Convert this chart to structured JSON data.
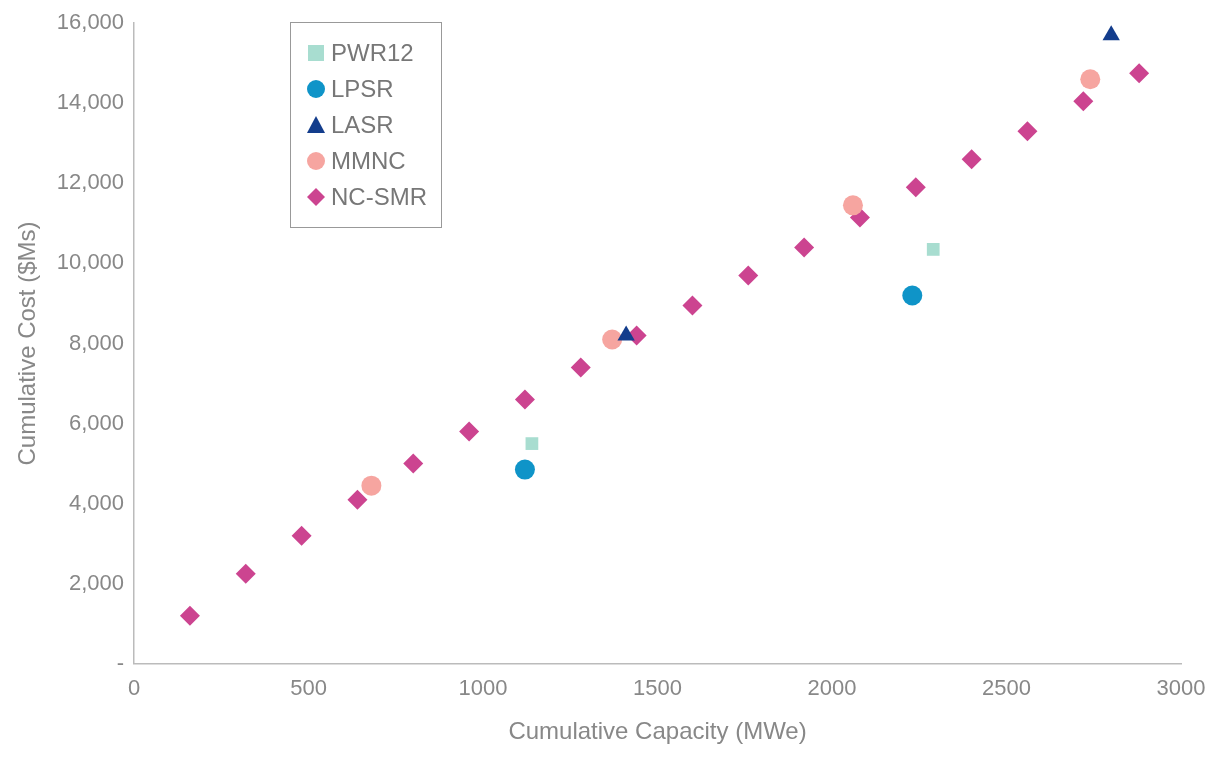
{
  "chart_data": {
    "type": "scatter",
    "xlabel": "Cumulative Capacity (MWe)",
    "ylabel": "Cumulative Cost ($Ms)",
    "xlim": [
      0,
      3000
    ],
    "xticks": [
      0,
      500,
      1000,
      1500,
      2000,
      2500,
      3000
    ],
    "ylim": [
      0,
      16000
    ],
    "yticks": [
      {
        "value": 0,
        "label": "-"
      },
      {
        "value": 2000,
        "label": "2,000"
      },
      {
        "value": 4000,
        "label": "4,000"
      },
      {
        "value": 6000,
        "label": "6,000"
      },
      {
        "value": 8000,
        "label": "8,000"
      },
      {
        "value": 10000,
        "label": "10,000"
      },
      {
        "value": 12000,
        "label": "12,000"
      },
      {
        "value": 14000,
        "label": "14,000"
      },
      {
        "value": 16000,
        "label": "16,000"
      }
    ],
    "grid": false,
    "legend": "top left",
    "series": [
      {
        "name": "PWR12",
        "color": "#a8ddd0",
        "marker": "square",
        "x": [
          1140,
          2290
        ],
        "values": [
          5500,
          10350
        ]
      },
      {
        "name": "LPSR",
        "color": "#0f94c8",
        "marker": "circle",
        "x": [
          1120,
          2230
        ],
        "values": [
          4850,
          9200
        ]
      },
      {
        "name": "LASR",
        "color": "#133d8c",
        "marker": "triangle",
        "x": [
          1410,
          2800
        ],
        "values": [
          8200,
          15700
        ]
      },
      {
        "name": "MMNC",
        "color": "#f6a5a0",
        "marker": "circle",
        "x": [
          680,
          1370,
          2060,
          2740
        ],
        "values": [
          4450,
          8100,
          11450,
          14600
        ]
      },
      {
        "name": "NC-SMR",
        "color": "#cc4490",
        "marker": "diamond",
        "x": [
          160,
          320,
          480,
          640,
          800,
          960,
          1120,
          1280,
          1440,
          1600,
          1760,
          1920,
          2080,
          2240,
          2400,
          2560,
          2720,
          2880
        ],
        "values": [
          1200,
          2250,
          3200,
          4100,
          5000,
          5800,
          6600,
          7400,
          8200,
          8950,
          9700,
          10400,
          11150,
          11900,
          12600,
          13300,
          14050,
          14750
        ]
      }
    ]
  }
}
